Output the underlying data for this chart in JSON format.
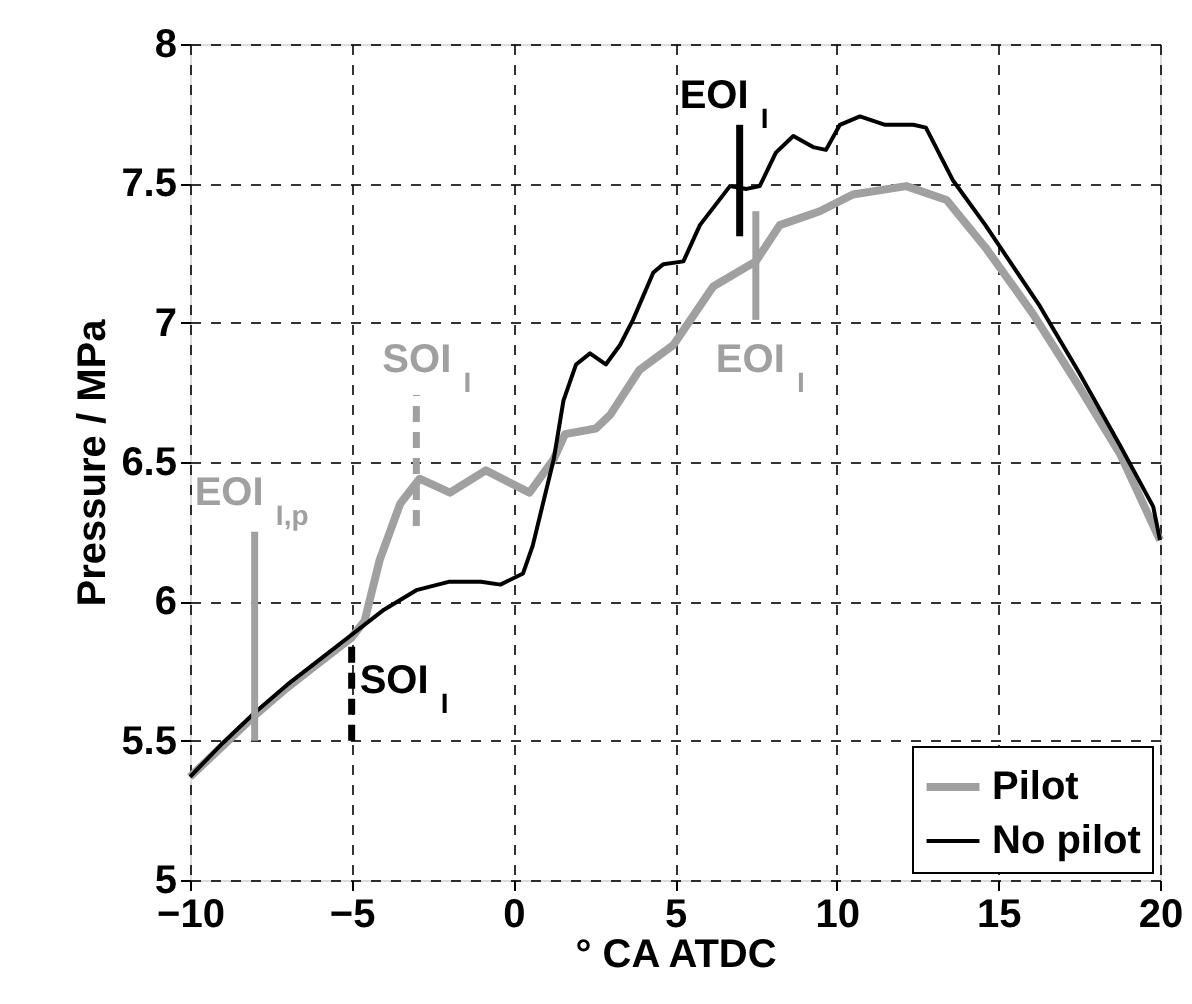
{
  "chart_data": {
    "type": "line",
    "xlabel": "° CA ATDC",
    "ylabel": "Pressure / MPa",
    "xlim": [
      -10,
      20
    ],
    "xticks": [
      -10,
      -5,
      0,
      5,
      10,
      15,
      20
    ],
    "ylim": [
      5,
      8
    ],
    "yticks": [
      5,
      5.5,
      6,
      6.5,
      7,
      7.5,
      8
    ],
    "grid": true,
    "legend": "bottom right",
    "line_style": "solid",
    "marker": "none",
    "series": [
      {
        "name": "Pilot",
        "color": "#a0a0a0",
        "x": [
          -10,
          -9,
          -8,
          -7,
          -6,
          -5,
          -4.6,
          -4.13,
          -3.5,
          -2.9,
          -1.96,
          -0.85,
          0.5,
          1.25,
          1.6,
          2.55,
          3.0,
          3.9,
          4.95,
          6.18,
          7.5,
          8.24,
          9.48,
          10.5,
          12.15,
          13.4,
          14.6,
          16.08,
          17.5,
          18.76,
          20
        ],
        "values": [
          5.37,
          5.48,
          5.59,
          5.69,
          5.78,
          5.87,
          5.93,
          6.15,
          6.35,
          6.44,
          6.39,
          6.47,
          6.39,
          6.51,
          6.6,
          6.62,
          6.67,
          6.83,
          6.92,
          7.13,
          7.22,
          7.35,
          7.4,
          7.46,
          7.49,
          7.44,
          7.27,
          7.03,
          6.77,
          6.53,
          6.22
        ]
      },
      {
        "name": "No pilot",
        "color": "#000000",
        "x": [
          -10,
          -9,
          -8,
          -7,
          -6,
          -5,
          -4,
          -3,
          -2,
          -1,
          -0.4,
          0.3,
          0.6,
          1.25,
          1.55,
          1.94,
          2.37,
          2.86,
          3.3,
          3.7,
          4.33,
          4.64,
          5.26,
          5.77,
          6.7,
          7.21,
          7.62,
          8.12,
          8.66,
          9.27,
          9.67,
          10.1,
          10.72,
          11.5,
          12.37,
          12.76,
          13.6,
          14.6,
          16.28,
          17.5,
          18.76,
          19.79,
          20
        ],
        "values": [
          5.37,
          5.49,
          5.6,
          5.7,
          5.79,
          5.88,
          5.97,
          6.04,
          6.07,
          6.07,
          6.06,
          6.1,
          6.2,
          6.51,
          6.72,
          6.85,
          6.89,
          6.85,
          6.92,
          7.01,
          7.18,
          7.21,
          7.22,
          7.35,
          7.49,
          7.48,
          7.49,
          7.61,
          7.67,
          7.63,
          7.62,
          7.71,
          7.74,
          7.71,
          7.71,
          7.7,
          7.51,
          7.35,
          7.06,
          6.82,
          6.56,
          6.34,
          6.22
        ]
      },
      {
        "color": "#a0a0a0",
        "line_style": "solid",
        "x": [
          -8,
          -8
        ],
        "values": [
          5.5,
          6.25
        ]
      },
      {
        "color": "#a0a0a0",
        "line_style": "dashed",
        "x": [
          -3,
          -3
        ],
        "values": [
          6.27,
          6.74
        ]
      },
      {
        "color": "#000000",
        "line_style": "dashed",
        "x": [
          -5,
          -5
        ],
        "values": [
          5.5,
          5.85
        ]
      },
      {
        "color": "#000000",
        "line_style": "solid",
        "x": [
          7,
          7
        ],
        "values": [
          7.31,
          7.71
        ]
      },
      {
        "color": "#a0a0a0",
        "line_style": "solid",
        "x": [
          7.5,
          7.5
        ],
        "values": [
          7.01,
          7.4
        ]
      }
    ],
    "annotations": [
      "EOI$_{I,p}$",
      "SOI$_{I}$",
      "SOI$_{I}$",
      "EOI$_{I}$",
      "EOI$_{I}$"
    ]
  }
}
